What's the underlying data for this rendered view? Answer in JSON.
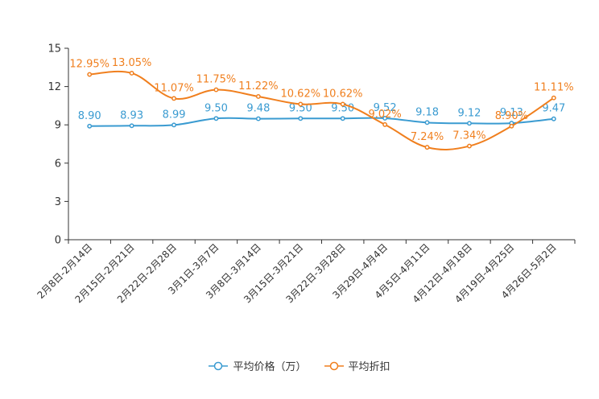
{
  "chart_data": {
    "type": "line",
    "title": "",
    "xlabel": "",
    "ylabel": "",
    "ylim": [
      0,
      15
    ],
    "yticks": [
      0,
      3,
      6,
      9,
      12,
      15
    ],
    "categories": [
      "2月8日-2月14日",
      "2月15日-2月21日",
      "2月22日-2月28日",
      "3月1日-3月7日",
      "3月8日-3月14日",
      "3月15日-3月21日",
      "3月22日-3月28日",
      "3月29日-4月4日",
      "4月5日-4月11日",
      "4月12日-4月18日",
      "4月19日-4月25日",
      "4月26日-5月2日"
    ],
    "series": [
      {
        "name": "平均价格（万）",
        "color": "#3a9bd1",
        "values": [
          8.9,
          8.93,
          8.99,
          9.5,
          9.48,
          9.5,
          9.5,
          9.52,
          9.18,
          9.12,
          9.13,
          9.47
        ],
        "labels": [
          "8.90",
          "8.93",
          "8.99",
          "9.50",
          "9.48",
          "9.50",
          "9.50",
          "9.52",
          "9.18",
          "9.12",
          "9.13",
          "9.47"
        ]
      },
      {
        "name": "平均折扣",
        "color": "#f07f1e",
        "values": [
          12.95,
          13.05,
          11.07,
          11.75,
          11.22,
          10.62,
          10.62,
          9.02,
          7.24,
          7.34,
          8.9,
          11.11
        ],
        "labels": [
          "12.95%",
          "13.05%",
          "11.07%",
          "11.75%",
          "11.22%",
          "10.62%",
          "10.62%",
          "9.02%",
          "7.24%",
          "7.34%",
          "8.90%",
          "11.11%"
        ]
      }
    ],
    "legend_position": "bottom-center",
    "grid": false
  }
}
